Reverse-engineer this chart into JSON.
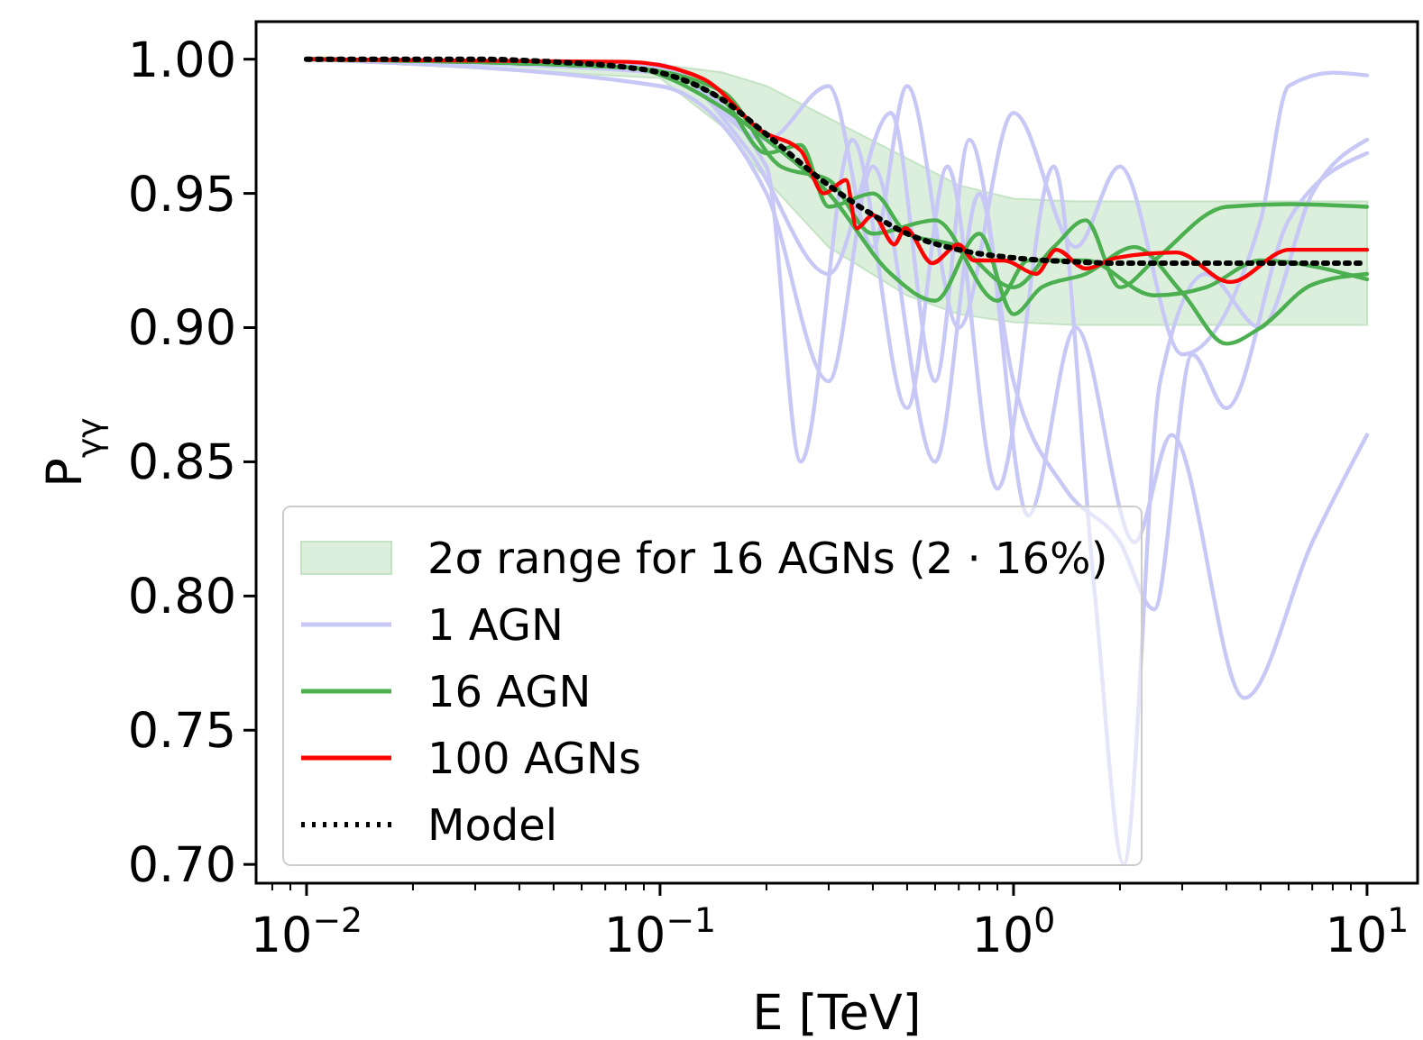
{
  "chart_data": {
    "type": "line",
    "xlabel": "E [TeV]",
    "ylabel": "P$_{γγ}$",
    "log": "x",
    "grid": false,
    "legend": "bottom left",
    "xlim": [
      0.0072,
      13.9
    ],
    "ylim": [
      0.693,
      1.014
    ],
    "xticks": [
      {
        "value": 0.01,
        "label": "10$^{−2}$"
      },
      {
        "value": 0.1,
        "label": "10$^{−1}$"
      },
      {
        "value": 1,
        "label": "10$^{0}$"
      },
      {
        "value": 10,
        "label": "10$^{1}$"
      },
      {
        "value": 0.008,
        "label": null
      },
      {
        "value": 0.009,
        "label": null
      },
      {
        "value": 0.02,
        "label": null
      },
      {
        "value": 0.03,
        "label": null
      },
      {
        "value": 0.04,
        "label": null
      },
      {
        "value": 0.05,
        "label": null
      },
      {
        "value": 0.06,
        "label": null
      },
      {
        "value": 0.07,
        "label": null
      },
      {
        "value": 0.08,
        "label": null
      },
      {
        "value": 0.09,
        "label": null
      },
      {
        "value": 0.2,
        "label": null
      },
      {
        "value": 0.3,
        "label": null
      },
      {
        "value": 0.4,
        "label": null
      },
      {
        "value": 0.5,
        "label": null
      },
      {
        "value": 0.6,
        "label": null
      },
      {
        "value": 0.7,
        "label": null
      },
      {
        "value": 0.8,
        "label": null
      },
      {
        "value": 0.9,
        "label": null
      },
      {
        "value": 2,
        "label": null
      },
      {
        "value": 3,
        "label": null
      },
      {
        "value": 4,
        "label": null
      },
      {
        "value": 5,
        "label": null
      },
      {
        "value": 6,
        "label": null
      },
      {
        "value": 7,
        "label": null
      },
      {
        "value": 8,
        "label": null
      },
      {
        "value": 9,
        "label": null
      }
    ],
    "yticks": [
      {
        "value": 0.7,
        "label": "0.70"
      },
      {
        "value": 0.75,
        "label": "0.75"
      },
      {
        "value": 0.8,
        "label": "0.80"
      },
      {
        "value": 0.85,
        "label": "0.85"
      },
      {
        "value": 0.9,
        "label": "0.90"
      },
      {
        "value": 0.95,
        "label": "0.95"
      },
      {
        "value": 1.0,
        "label": "1.00"
      }
    ],
    "series": [
      {
        "type": "area",
        "name": "2σ range for 16 AGNs (2 · 16%)",
        "color": "#dcefdc",
        "x": [
          0.01,
          0.1,
          0.15,
          0.2,
          0.3,
          0.5,
          0.7,
          1,
          1.5,
          10
        ],
        "lower": [
          1.0,
          0.993,
          0.975,
          0.955,
          0.93,
          0.912,
          0.905,
          0.902,
          0.901,
          0.901
        ],
        "values": [
          null,
          null,
          null,
          null,
          null,
          null,
          null,
          null,
          null,
          null
        ],
        "upper": [
          1.0,
          0.998,
          0.995,
          0.99,
          0.978,
          0.963,
          0.953,
          0.948,
          0.947,
          0.947
        ]
      },
      {
        "name": "1 AGN",
        "color": "#c8c8f6",
        "x": [
          0.01,
          0.1,
          0.2,
          0.3,
          0.4,
          0.5,
          0.7,
          1,
          1.5,
          2,
          3,
          5,
          6,
          8,
          10
        ],
        "values": [
          1.0,
          0.998,
          0.97,
          0.99,
          0.93,
          0.99,
          0.9,
          0.98,
          0.93,
          0.96,
          0.89,
          0.94,
          0.99,
          0.995,
          0.994
        ]
      },
      {
        "color": "#c8c8f6",
        "x": [
          0.01,
          0.1,
          0.2,
          0.3,
          0.4,
          0.6,
          0.8,
          1.1,
          1.5,
          2.2,
          2.8,
          4.5,
          7,
          10
        ],
        "values": [
          1.0,
          0.99,
          0.95,
          0.88,
          0.96,
          0.85,
          0.95,
          0.83,
          0.9,
          0.82,
          0.86,
          0.762,
          0.82,
          0.86
        ]
      },
      {
        "color": "#c8c8f6",
        "x": [
          0.01,
          0.1,
          0.2,
          0.25,
          0.35,
          0.5,
          0.65,
          0.9,
          1.3,
          1.7,
          2.05,
          2.6,
          3.5,
          5,
          7,
          10
        ],
        "values": [
          1.0,
          0.995,
          0.96,
          0.85,
          0.97,
          0.87,
          0.96,
          0.84,
          0.96,
          0.8,
          0.7,
          0.88,
          0.92,
          0.9,
          0.95,
          0.97
        ]
      },
      {
        "color": "#c8c8f6",
        "x": [
          0.01,
          0.1,
          0.18,
          0.3,
          0.45,
          0.6,
          0.75,
          1,
          1.4,
          2,
          2.5,
          3.2,
          4,
          6,
          10
        ],
        "values": [
          1.0,
          0.997,
          0.965,
          0.92,
          0.98,
          0.88,
          0.97,
          0.88,
          0.84,
          0.82,
          0.795,
          0.89,
          0.87,
          0.94,
          0.965
        ]
      },
      {
        "name": "16 AGN",
        "color": "#4caf50",
        "x": [
          0.01,
          0.08,
          0.15,
          0.2,
          0.25,
          0.3,
          0.4,
          0.5,
          0.7,
          1,
          1.3,
          1.6,
          2,
          2.5,
          4,
          6,
          10
        ],
        "values": [
          1.0,
          0.997,
          0.985,
          0.965,
          0.968,
          0.945,
          0.95,
          0.935,
          0.93,
          0.915,
          0.93,
          0.94,
          0.915,
          0.925,
          0.945,
          0.946,
          0.945
        ]
      },
      {
        "color": "#4caf50",
        "x": [
          0.01,
          0.08,
          0.15,
          0.2,
          0.3,
          0.45,
          0.6,
          0.8,
          1.0,
          1.2,
          1.6,
          2.2,
          3,
          4,
          5,
          7,
          10
        ],
        "values": [
          1.0,
          0.997,
          0.982,
          0.97,
          0.95,
          0.92,
          0.91,
          0.935,
          0.905,
          0.915,
          0.92,
          0.93,
          0.913,
          0.894,
          0.9,
          0.916,
          0.92
        ]
      },
      {
        "color": "#4caf50",
        "x": [
          0.01,
          0.08,
          0.15,
          0.22,
          0.3,
          0.4,
          0.6,
          0.9,
          1.1,
          1.6,
          2.5,
          3.5,
          5,
          10
        ],
        "values": [
          1.0,
          0.997,
          0.988,
          0.96,
          0.955,
          0.935,
          0.94,
          0.91,
          0.925,
          0.925,
          0.912,
          0.915,
          0.925,
          0.918
        ]
      },
      {
        "name": "100 AGNs",
        "color": "#ff0000",
        "x": [
          0.01,
          0.081,
          0.132,
          0.195,
          0.25,
          0.291,
          0.336,
          0.36,
          0.4,
          0.46,
          0.494,
          0.589,
          0.7,
          0.772,
          0.94,
          1.16,
          1.32,
          1.6,
          1.95,
          2.88,
          4.1,
          6.04,
          10
        ],
        "values": [
          1.0,
          0.999,
          0.9928,
          0.973,
          0.966,
          0.95,
          0.955,
          0.937,
          0.942,
          0.931,
          0.937,
          0.924,
          0.931,
          0.925,
          0.925,
          0.92,
          0.929,
          0.922,
          0.926,
          0.928,
          0.917,
          0.929,
          0.929
        ]
      },
      {
        "name": "Model",
        "color": "#000000",
        "line_style": "dotted",
        "x": [
          0.01,
          0.03,
          0.05,
          0.08,
          0.1,
          0.15,
          0.2,
          0.3,
          0.4,
          0.5,
          0.7,
          1,
          1.5,
          2,
          5,
          10
        ],
        "values": [
          1.0,
          1.0,
          0.999,
          0.997,
          0.995,
          0.985,
          0.972,
          0.953,
          0.942,
          0.935,
          0.929,
          0.926,
          0.9245,
          0.924,
          0.924,
          0.924
        ]
      }
    ]
  }
}
